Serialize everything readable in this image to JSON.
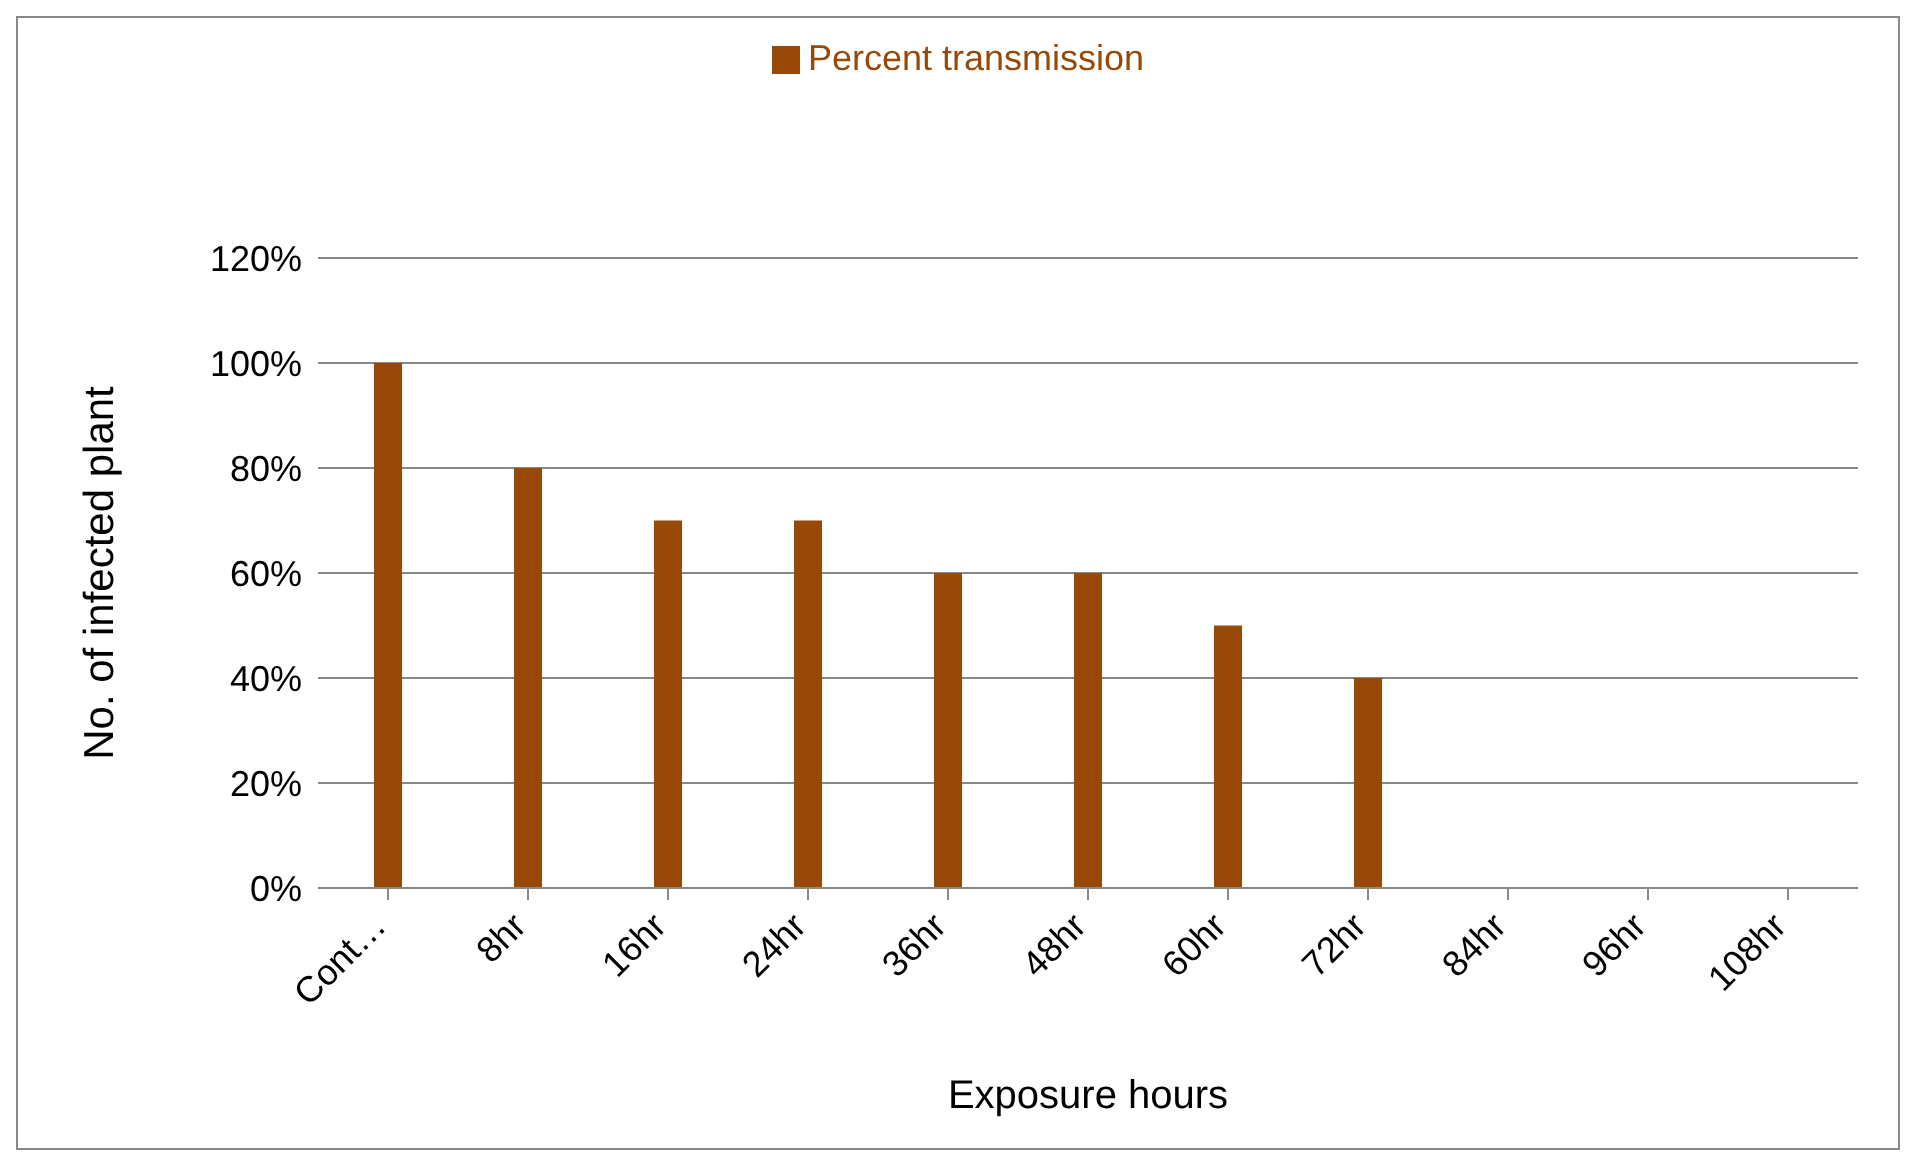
{
  "chart_data": {
    "type": "bar",
    "xlabel": "Exposure hours",
    "ylabel": "No. of infected plant",
    "categories": [
      "Cont…",
      "8hr",
      "16hr",
      "24hr",
      "36hr",
      "48hr",
      "60hr",
      "72hr",
      "84hr",
      "96hr",
      "108hr"
    ],
    "series": [
      {
        "name": "Percent transmission",
        "color": "#984807",
        "values": [
          100,
          80,
          70,
          70,
          60,
          60,
          50,
          40,
          0,
          0,
          0
        ]
      }
    ],
    "ylim": [
      0,
      120
    ],
    "yticks": [
      {
        "value": 0,
        "label": "0%"
      },
      {
        "value": 20,
        "label": "20%"
      },
      {
        "value": 40,
        "label": "40%"
      },
      {
        "value": 60,
        "label": "60%"
      },
      {
        "value": 80,
        "label": "80%"
      },
      {
        "value": 100,
        "label": "100%"
      },
      {
        "value": 120,
        "label": "120%"
      }
    ],
    "grid": "y",
    "legend": "top"
  }
}
